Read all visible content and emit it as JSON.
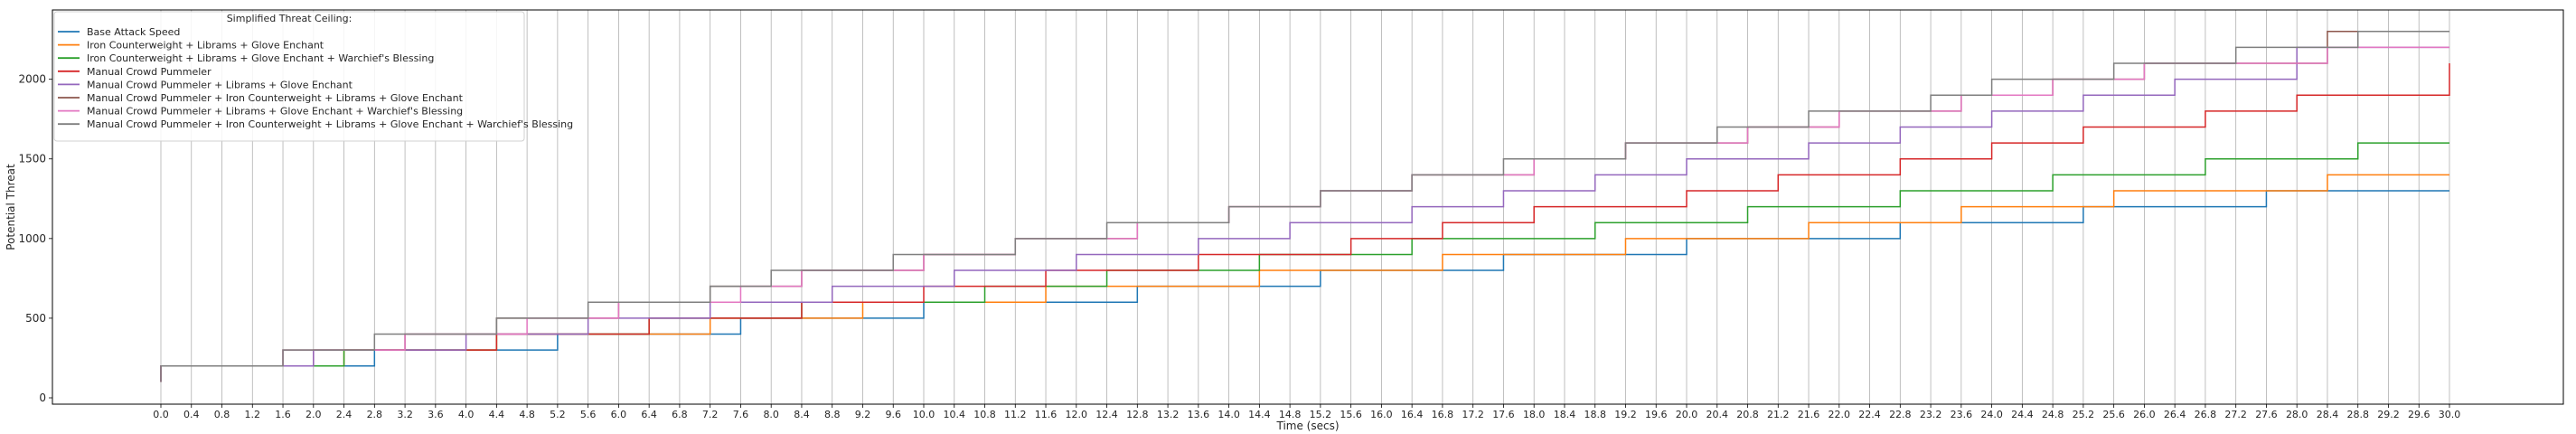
{
  "chart_data": {
    "type": "line",
    "step": true,
    "title": "",
    "xlabel": "Time (secs)",
    "ylabel": "Potential Threat",
    "xlim": [
      0,
      30
    ],
    "ylim": [
      0,
      2350
    ],
    "xticks": [
      "0.0",
      "0.4",
      "0.8",
      "1.2",
      "1.6",
      "2.0",
      "2.4",
      "2.8",
      "3.2",
      "3.6",
      "4.0",
      "4.4",
      "4.8",
      "5.2",
      "5.6",
      "6.0",
      "6.4",
      "6.8",
      "7.2",
      "7.6",
      "8.0",
      "8.4",
      "8.8",
      "9.2",
      "9.6",
      "10.0",
      "10.4",
      "10.8",
      "11.2",
      "11.6",
      "12.0",
      "12.4",
      "12.8",
      "13.2",
      "13.6",
      "14.0",
      "14.4",
      "14.8",
      "15.2",
      "15.6",
      "16.0",
      "16.4",
      "16.8",
      "17.2",
      "17.6",
      "18.0",
      "18.4",
      "18.8",
      "19.2",
      "19.6",
      "20.0",
      "20.4",
      "20.8",
      "21.2",
      "21.6",
      "22.0",
      "22.4",
      "22.8",
      "23.2",
      "23.6",
      "24.0",
      "24.4",
      "24.8",
      "25.2",
      "25.6",
      "26.0",
      "26.4",
      "26.8",
      "27.2",
      "27.6",
      "28.0",
      "28.4",
      "28.8",
      "29.2",
      "29.6",
      "30.0"
    ],
    "yticks": [
      0,
      500,
      1000,
      1500,
      2000
    ],
    "grid": {
      "x": true,
      "y": false
    },
    "legend": {
      "title": "Simplified Threat Ceiling:",
      "placement": "top-left"
    },
    "series": [
      {
        "name": "Base Attack Speed",
        "color": "#1f77b4",
        "x0": 0,
        "y0": 100,
        "steps": [
          [
            0,
            200
          ],
          [
            2.8,
            300
          ],
          [
            5.2,
            400
          ],
          [
            7.6,
            500
          ],
          [
            10.0,
            600
          ],
          [
            12.8,
            700
          ],
          [
            15.2,
            800
          ],
          [
            17.6,
            900
          ],
          [
            20.0,
            1000
          ],
          [
            22.8,
            1100
          ],
          [
            25.2,
            1200
          ],
          [
            27.6,
            1300
          ]
        ],
        "end": 30
      },
      {
        "name": "Iron Counterweight + Librams + Glove Enchant",
        "color": "#ff7f0e",
        "x0": 0,
        "y0": 100,
        "steps": [
          [
            0,
            200
          ],
          [
            2.4,
            300
          ],
          [
            4.4,
            400
          ],
          [
            7.2,
            500
          ],
          [
            9.2,
            600
          ],
          [
            11.6,
            700
          ],
          [
            14.4,
            800
          ],
          [
            16.8,
            900
          ],
          [
            19.2,
            1000
          ],
          [
            21.6,
            1100
          ],
          [
            23.6,
            1200
          ],
          [
            25.6,
            1300
          ],
          [
            28.4,
            1400
          ]
        ],
        "end": 30
      },
      {
        "name": "Iron Counterweight + Librams + Glove Enchant + Warchief's Blessing",
        "color": "#2ca02c",
        "x0": 0,
        "y0": 100,
        "steps": [
          [
            0,
            200
          ],
          [
            2.4,
            300
          ],
          [
            4.4,
            400
          ],
          [
            6.4,
            500
          ],
          [
            8.4,
            600
          ],
          [
            10.8,
            700
          ],
          [
            12.4,
            800
          ],
          [
            14.4,
            900
          ],
          [
            16.4,
            1000
          ],
          [
            18.8,
            1100
          ],
          [
            20.8,
            1200
          ],
          [
            22.8,
            1300
          ],
          [
            24.8,
            1400
          ],
          [
            26.8,
            1500
          ],
          [
            28.8,
            1600
          ]
        ],
        "end": 30
      },
      {
        "name": "Manual Crowd Pummeler",
        "color": "#d62728",
        "x0": 0,
        "y0": 100,
        "steps": [
          [
            0,
            200
          ],
          [
            2.0,
            300
          ],
          [
            4.4,
            400
          ],
          [
            6.4,
            500
          ],
          [
            8.4,
            600
          ],
          [
            10.0,
            700
          ],
          [
            11.6,
            800
          ],
          [
            13.6,
            900
          ],
          [
            15.6,
            1000
          ],
          [
            16.8,
            1100
          ],
          [
            18.0,
            1200
          ],
          [
            20.0,
            1300
          ],
          [
            21.2,
            1400
          ],
          [
            22.8,
            1500
          ],
          [
            24.0,
            1600
          ],
          [
            25.2,
            1700
          ],
          [
            26.8,
            1800
          ],
          [
            28.0,
            1900
          ],
          [
            30.0,
            2100
          ]
        ],
        "end": 30
      },
      {
        "name": "Manual Crowd Pummeler + Librams + Glove Enchant",
        "color": "#9467bd",
        "x0": 0,
        "y0": 100,
        "steps": [
          [
            0,
            200
          ],
          [
            2.0,
            300
          ],
          [
            4.0,
            400
          ],
          [
            5.6,
            500
          ],
          [
            7.2,
            600
          ],
          [
            8.8,
            700
          ],
          [
            10.4,
            800
          ],
          [
            12.0,
            900
          ],
          [
            13.6,
            1000
          ],
          [
            14.8,
            1100
          ],
          [
            16.4,
            1200
          ],
          [
            17.6,
            1300
          ],
          [
            18.8,
            1400
          ],
          [
            20.0,
            1500
          ],
          [
            21.6,
            1600
          ],
          [
            22.8,
            1700
          ],
          [
            24.0,
            1800
          ],
          [
            25.2,
            1900
          ],
          [
            26.4,
            2000
          ],
          [
            28.0,
            2200
          ]
        ],
        "end": 30
      },
      {
        "name": "Manual Crowd Pummeler + Iron Counterweight + Librams + Glove Enchant",
        "color": "#8c564b",
        "x0": 0,
        "y0": 100,
        "steps": [
          [
            0,
            200
          ],
          [
            1.6,
            300
          ],
          [
            3.2,
            400
          ],
          [
            4.4,
            500
          ],
          [
            6.0,
            600
          ],
          [
            7.2,
            700
          ],
          [
            8.4,
            800
          ],
          [
            10.0,
            900
          ],
          [
            11.2,
            1000
          ],
          [
            12.8,
            1100
          ],
          [
            14.0,
            1200
          ],
          [
            15.2,
            1300
          ],
          [
            16.4,
            1400
          ],
          [
            18.0,
            1500
          ],
          [
            19.2,
            1600
          ],
          [
            20.8,
            1700
          ],
          [
            22.0,
            1800
          ],
          [
            23.6,
            1900
          ],
          [
            24.8,
            2000
          ],
          [
            26.0,
            2100
          ],
          [
            28.4,
            2300
          ]
        ],
        "end": 30
      },
      {
        "name": "Manual Crowd Pummeler + Librams + Glove Enchant + Warchief's Blessing",
        "color": "#e377c2",
        "x0": 0,
        "y0": 100,
        "steps": [
          [
            0,
            200
          ],
          [
            1.6,
            300
          ],
          [
            3.2,
            400
          ],
          [
            4.8,
            500
          ],
          [
            6.0,
            600
          ],
          [
            7.6,
            700
          ],
          [
            8.4,
            800
          ],
          [
            10.0,
            900
          ],
          [
            11.2,
            1000
          ],
          [
            12.8,
            1100
          ],
          [
            14.0,
            1200
          ],
          [
            15.2,
            1300
          ],
          [
            16.4,
            1400
          ],
          [
            18.0,
            1500
          ],
          [
            19.2,
            1600
          ],
          [
            20.8,
            1700
          ],
          [
            22.0,
            1800
          ],
          [
            23.6,
            1900
          ],
          [
            24.8,
            2000
          ],
          [
            26.0,
            2100
          ],
          [
            28.4,
            2200
          ]
        ],
        "end": 30
      },
      {
        "name": "Manual Crowd Pummeler + Iron Counterweight + Librams + Glove Enchant + Warchief's Blessing",
        "color": "#7f7f7f",
        "x0": 0,
        "y0": 100,
        "steps": [
          [
            0,
            200
          ],
          [
            1.6,
            300
          ],
          [
            2.8,
            400
          ],
          [
            4.4,
            500
          ],
          [
            5.6,
            600
          ],
          [
            7.2,
            700
          ],
          [
            8.0,
            800
          ],
          [
            9.6,
            900
          ],
          [
            11.2,
            1000
          ],
          [
            12.4,
            1100
          ],
          [
            14.0,
            1200
          ],
          [
            15.2,
            1300
          ],
          [
            16.4,
            1400
          ],
          [
            17.6,
            1500
          ],
          [
            19.2,
            1600
          ],
          [
            20.4,
            1700
          ],
          [
            21.6,
            1800
          ],
          [
            23.2,
            1900
          ],
          [
            24.0,
            2000
          ],
          [
            25.6,
            2100
          ],
          [
            27.2,
            2200
          ],
          [
            28.8,
            2300
          ]
        ],
        "end": 30
      }
    ]
  }
}
